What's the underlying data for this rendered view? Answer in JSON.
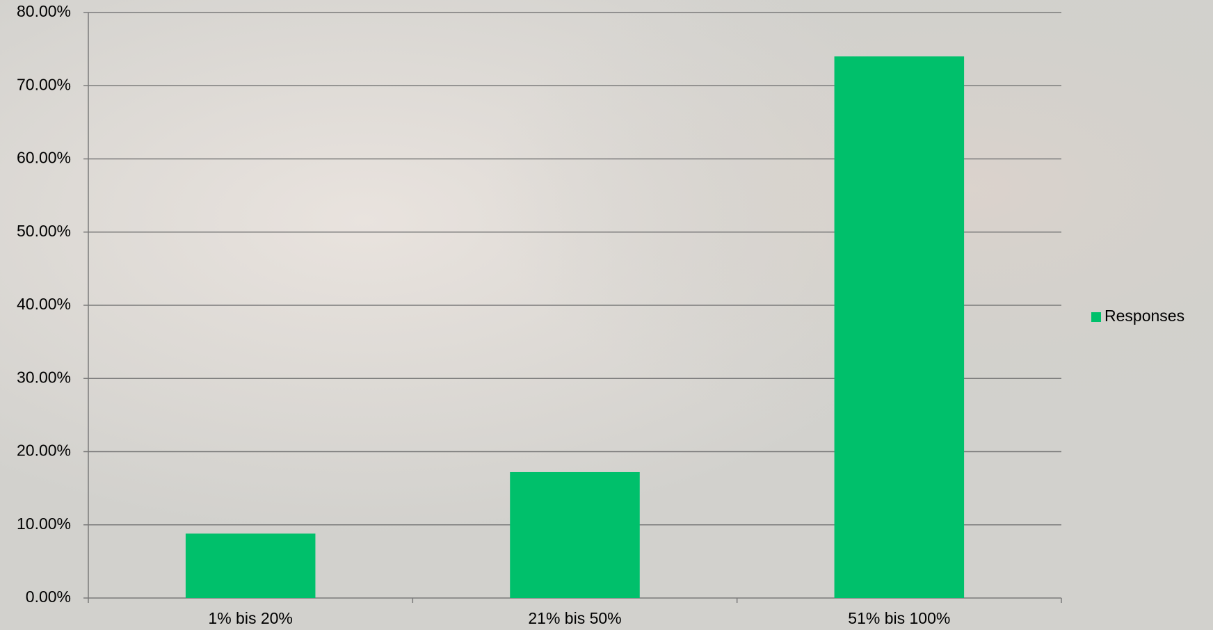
{
  "chart_data": {
    "type": "bar",
    "categories": [
      "1% bis 20%",
      "21% bis 50%",
      "51% bis 100%"
    ],
    "series": [
      {
        "name": "Responses",
        "color": "#00c06b",
        "values": [
          8.8,
          17.2,
          74.0
        ]
      }
    ],
    "ylim": [
      0,
      80
    ],
    "yticks": [
      {
        "value": 0,
        "label": "0.00%"
      },
      {
        "value": 10,
        "label": "10.00%"
      },
      {
        "value": 20,
        "label": "20.00%"
      },
      {
        "value": 30,
        "label": "30.00%"
      },
      {
        "value": 40,
        "label": "40.00%"
      },
      {
        "value": 50,
        "label": "50.00%"
      },
      {
        "value": 60,
        "label": "60.00%"
      },
      {
        "value": 70,
        "label": "70.00%"
      },
      {
        "value": 80,
        "label": "80.00%"
      }
    ],
    "grid": true,
    "legend": "right"
  }
}
